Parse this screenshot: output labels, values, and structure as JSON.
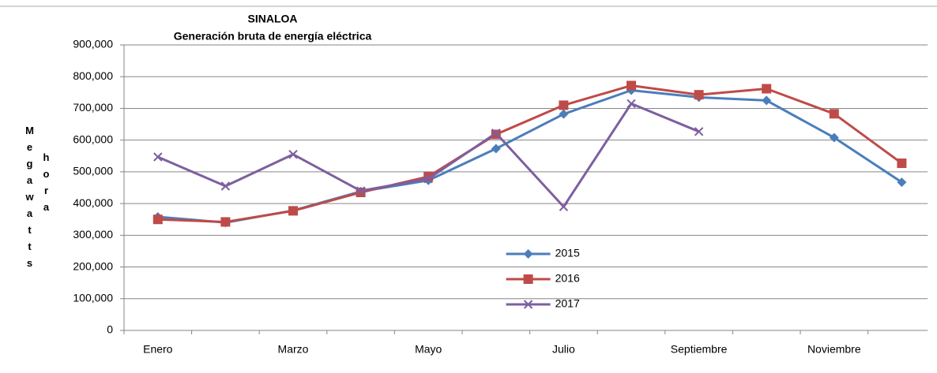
{
  "chart_data": {
    "type": "line",
    "title": "SINALOA",
    "subtitle": "Generación bruta de energía eléctrica",
    "y_label_1": "Megawatts",
    "y_label_2": "hora",
    "categories": [
      "Enero",
      null,
      "Marzo",
      null,
      "Mayo",
      null,
      "Julio",
      null,
      "Septiembre",
      null,
      "Noviembre",
      null
    ],
    "series": [
      {
        "name": "2015",
        "color": "#4a7ebb",
        "marker": "diamond",
        "values": [
          358000,
          340000,
          378000,
          438000,
          473000,
          573000,
          682000,
          757000,
          735000,
          725000,
          608000,
          467000
        ]
      },
      {
        "name": "2016",
        "color": "#be4b48",
        "marker": "square",
        "values": [
          350000,
          342000,
          377000,
          435000,
          485000,
          618000,
          710000,
          772000,
          743000,
          762000,
          683000,
          527000
        ]
      },
      {
        "name": "2017",
        "color": "#7d5fa0",
        "marker": "x",
        "values": [
          547000,
          455000,
          555000,
          440000,
          478000,
          622000,
          390000,
          715000,
          627000,
          null,
          null,
          null
        ]
      }
    ],
    "ylim": [
      0,
      900000
    ],
    "yticks": [
      0,
      {
        "value": 100000,
        "label": "100,000"
      },
      {
        "value": 200000,
        "label": "200,000"
      },
      {
        "value": 300000,
        "label": "300,000"
      },
      {
        "value": 400000,
        "label": "400,000"
      },
      {
        "value": 500000,
        "label": "500,000"
      },
      {
        "value": 600000,
        "label": "600,000"
      },
      {
        "value": 700000,
        "label": "700,000"
      },
      {
        "value": 800000,
        "label": "800,000"
      },
      {
        "value": 900000,
        "label": "900,000"
      }
    ],
    "grid": true,
    "legend": "lower center"
  }
}
